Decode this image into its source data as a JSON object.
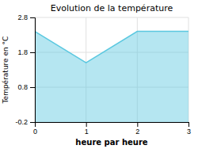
{
  "chart_data": {
    "type": "area",
    "title": "Evolution de la température",
    "xlabel": "heure par heure",
    "ylabel": "Température en °C",
    "x": [
      0,
      1,
      2,
      3
    ],
    "values": [
      2.4,
      1.5,
      2.4,
      2.4
    ],
    "color": "#5bc8e0",
    "xlim": [
      0,
      3
    ],
    "xticks": [
      0,
      1,
      2,
      3
    ],
    "ylim": [
      -0.2,
      2.8
    ],
    "yticks": [
      -0.2,
      0.8,
      1.8,
      2.8
    ],
    "grid": true
  }
}
